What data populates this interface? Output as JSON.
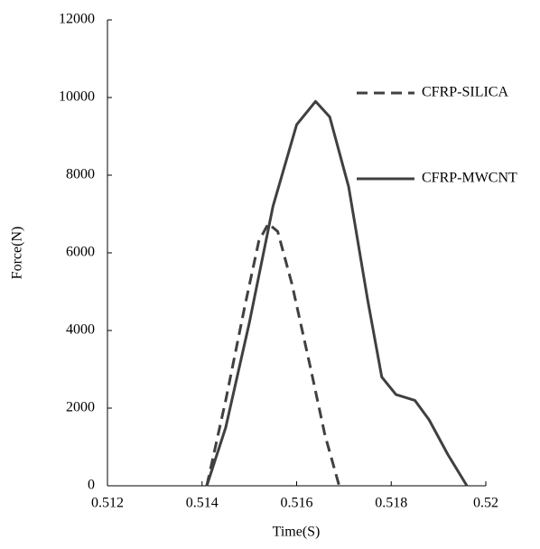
{
  "chart_data": {
    "type": "line",
    "x_label": "Time(S)",
    "y_label": "Force(N)",
    "xlim": [
      0.512,
      0.52
    ],
    "xticks": [
      0.512,
      0.514,
      0.516,
      0.518,
      0.52
    ],
    "ylim": [
      0,
      12000
    ],
    "yticks": [
      0,
      2000,
      4000,
      6000,
      8000,
      10000,
      12000
    ],
    "grid": false,
    "legend": "right",
    "series": [
      {
        "name": "CFRP-SILICA",
        "color": "#404040",
        "dashed": true,
        "x": [
          0.5141,
          0.5145,
          0.5149,
          0.5152,
          0.5154,
          0.5156,
          0.5159,
          0.5163,
          0.5166,
          0.5169
        ],
        "values": [
          0,
          2200,
          4600,
          6300,
          6750,
          6550,
          5200,
          3000,
          1300,
          0
        ]
      },
      {
        "name": "CFRP-MWCNT",
        "color": "#404040",
        "dashed": false,
        "x": [
          0.5141,
          0.5145,
          0.515,
          0.5155,
          0.516,
          0.5164,
          0.5167,
          0.5171,
          0.5175,
          0.5178,
          0.5181,
          0.5185,
          0.5188,
          0.5192,
          0.5196
        ],
        "values": [
          0,
          1500,
          4200,
          7200,
          9300,
          9900,
          9500,
          7700,
          4800,
          2800,
          2350,
          2200,
          1700,
          800,
          0
        ]
      }
    ]
  }
}
